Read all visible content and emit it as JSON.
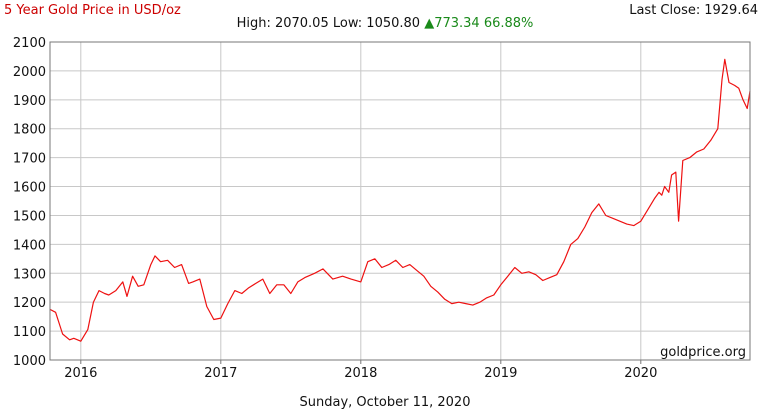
{
  "header": {
    "title": "5 Year Gold Price in USD/oz",
    "last_close_label": "Last Close:",
    "last_close_value": "1929.64",
    "high_label": "High:",
    "high_value": "2070.05",
    "low_label": "Low:",
    "low_value": "1050.80",
    "change_arrow": "▲",
    "change_value": "773.34",
    "change_percent": "66.88%"
  },
  "footer": {
    "date": "Sunday, October 11, 2020"
  },
  "watermark": "goldprice.org",
  "colors": {
    "line": "#ee1111",
    "grid": "#c8c8c8",
    "axis": "#777777",
    "change": "#1a8a1a"
  },
  "chart_data": {
    "type": "line",
    "title": "5 Year Gold Price in USD/oz",
    "xlabel": "",
    "ylabel": "",
    "ylim": [
      1000,
      2100
    ],
    "yticks": [
      1000,
      1100,
      1200,
      1300,
      1400,
      1500,
      1600,
      1700,
      1800,
      1900,
      2000,
      2100
    ],
    "xlim": [
      2015.78,
      2020.78
    ],
    "xticks": [
      "2016",
      "2017",
      "2018",
      "2019",
      "2020"
    ],
    "xtick_values": [
      2016,
      2017,
      2018,
      2019,
      2020
    ],
    "grid": true,
    "series": [
      {
        "name": "",
        "x": [
          2015.78,
          2015.82,
          2015.87,
          2015.92,
          2015.95,
          2016.0,
          2016.05,
          2016.09,
          2016.13,
          2016.17,
          2016.2,
          2016.25,
          2016.3,
          2016.33,
          2016.37,
          2016.41,
          2016.45,
          2016.5,
          2016.53,
          2016.57,
          2016.62,
          2016.67,
          2016.72,
          2016.77,
          2016.8,
          2016.85,
          2016.9,
          2016.95,
          2017.0,
          2017.05,
          2017.1,
          2017.15,
          2017.2,
          2017.25,
          2017.3,
          2017.35,
          2017.4,
          2017.45,
          2017.5,
          2017.55,
          2017.6,
          2017.67,
          2017.73,
          2017.8,
          2017.87,
          2017.93,
          2018.0,
          2018.05,
          2018.1,
          2018.15,
          2018.2,
          2018.25,
          2018.3,
          2018.35,
          2018.4,
          2018.45,
          2018.5,
          2018.55,
          2018.6,
          2018.65,
          2018.7,
          2018.75,
          2018.8,
          2018.85,
          2018.9,
          2018.95,
          2019.0,
          2019.05,
          2019.1,
          2019.15,
          2019.2,
          2019.25,
          2019.3,
          2019.35,
          2019.4,
          2019.45,
          2019.5,
          2019.55,
          2019.6,
          2019.65,
          2019.7,
          2019.75,
          2019.8,
          2019.85,
          2019.9,
          2019.95,
          2020.0,
          2020.05,
          2020.1,
          2020.13,
          2020.15,
          2020.17,
          2020.2,
          2020.22,
          2020.25,
          2020.27,
          2020.3,
          2020.35,
          2020.4,
          2020.45,
          2020.5,
          2020.55,
          2020.58,
          2020.6,
          2020.63,
          2020.67,
          2020.7,
          2020.73,
          2020.76,
          2020.78
        ],
        "y": [
          1175,
          1165,
          1090,
          1070,
          1075,
          1065,
          1105,
          1200,
          1240,
          1230,
          1225,
          1240,
          1270,
          1220,
          1290,
          1255,
          1260,
          1330,
          1360,
          1340,
          1345,
          1320,
          1330,
          1265,
          1270,
          1280,
          1185,
          1140,
          1145,
          1195,
          1240,
          1230,
          1250,
          1265,
          1280,
          1230,
          1260,
          1260,
          1230,
          1270,
          1285,
          1300,
          1315,
          1280,
          1290,
          1280,
          1270,
          1340,
          1350,
          1320,
          1330,
          1345,
          1320,
          1330,
          1310,
          1290,
          1255,
          1235,
          1210,
          1195,
          1200,
          1195,
          1190,
          1200,
          1215,
          1225,
          1260,
          1290,
          1320,
          1300,
          1305,
          1295,
          1275,
          1285,
          1295,
          1340,
          1400,
          1420,
          1460,
          1510,
          1540,
          1500,
          1490,
          1480,
          1470,
          1465,
          1480,
          1520,
          1560,
          1580,
          1570,
          1600,
          1580,
          1640,
          1650,
          1480,
          1690,
          1700,
          1720,
          1730,
          1760,
          1800,
          1970,
          2040,
          1960,
          1950,
          1940,
          1900,
          1870,
          1930
        ]
      }
    ]
  }
}
